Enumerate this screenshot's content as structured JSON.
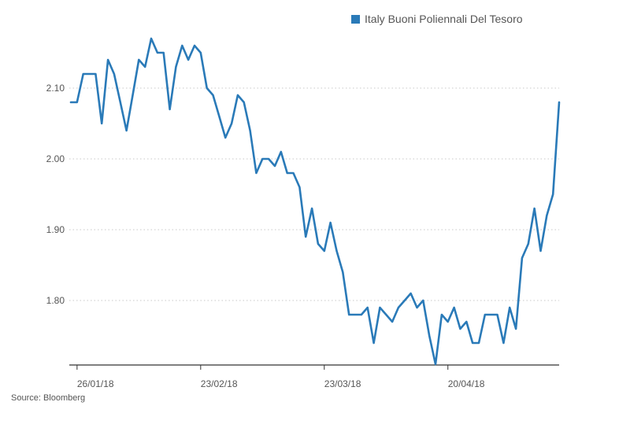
{
  "legend": {
    "label": "Italy Buoni Poliennali Del Tesoro"
  },
  "source": "Source: Bloomberg",
  "colors": {
    "line": "#2a7ab8",
    "grid": "#c8c8c8",
    "axis": "#333333",
    "text": "#555555"
  },
  "chart_data": {
    "type": "line",
    "ylim": [
      1.71,
      2.19
    ],
    "y_ticks": [
      1.8,
      1.9,
      2.0,
      2.1
    ],
    "y_tick_labels": [
      "1.80",
      "1.90",
      "2.00",
      "2.10"
    ],
    "x_tick_labels": [
      "26/01/18",
      "23/02/18",
      "23/03/18",
      "20/04/18"
    ],
    "x_tick_index": [
      1,
      21,
      41,
      61
    ],
    "grid": "horizontal-dotted",
    "legend_position": "top-right",
    "series": [
      {
        "name": "Italy Buoni Poliennali Del Tesoro",
        "values": [
          2.08,
          2.08,
          2.12,
          2.12,
          2.12,
          2.05,
          2.14,
          2.12,
          2.08,
          2.04,
          2.09,
          2.14,
          2.13,
          2.17,
          2.15,
          2.15,
          2.07,
          2.13,
          2.16,
          2.14,
          2.16,
          2.15,
          2.1,
          2.09,
          2.06,
          2.03,
          2.05,
          2.09,
          2.08,
          2.04,
          1.98,
          2.0,
          2.0,
          1.99,
          2.01,
          1.98,
          1.98,
          1.96,
          1.89,
          1.93,
          1.88,
          1.87,
          1.91,
          1.87,
          1.84,
          1.78,
          1.78,
          1.78,
          1.79,
          1.74,
          1.79,
          1.78,
          1.77,
          1.79,
          1.8,
          1.81,
          1.79,
          1.8,
          1.75,
          1.71,
          1.78,
          1.77,
          1.79,
          1.76,
          1.77,
          1.74,
          1.74,
          1.78,
          1.78,
          1.78,
          1.74,
          1.79,
          1.76,
          1.86,
          1.88,
          1.93,
          1.87,
          1.92,
          1.95,
          2.08
        ]
      }
    ]
  }
}
